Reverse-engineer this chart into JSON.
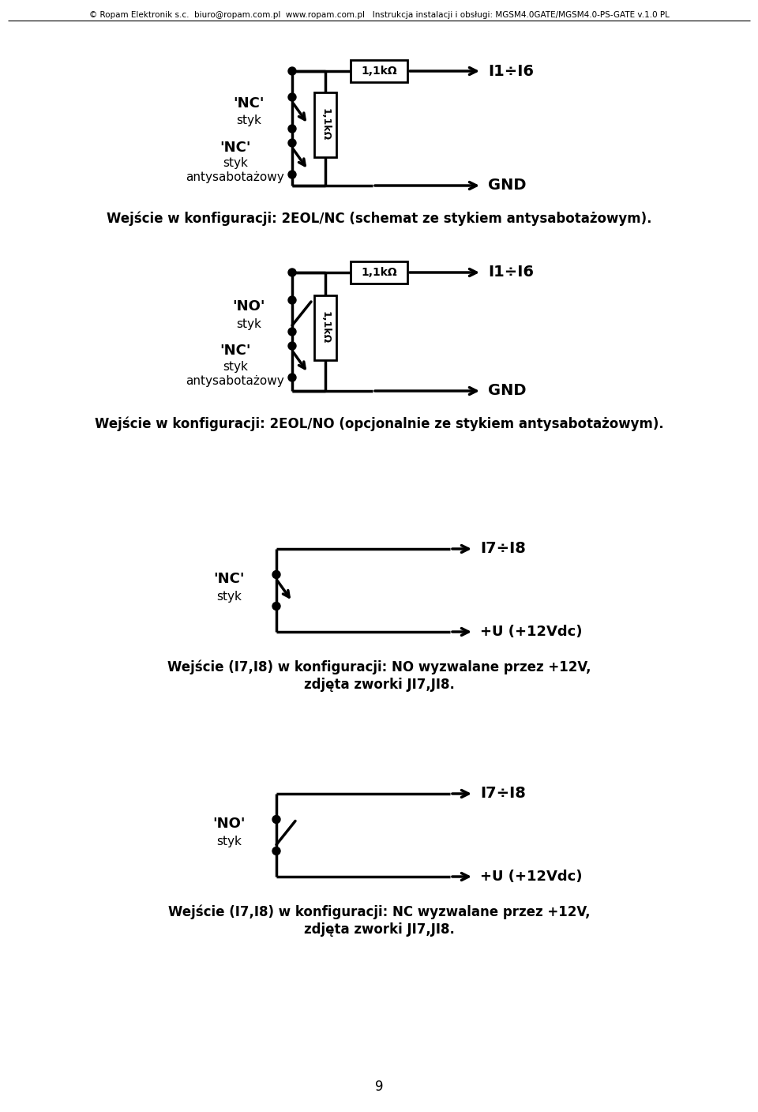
{
  "header_text": "© Ropam Elektronik s.c.  biuro@ropam.com.pl  www.ropam.com.pl   Instrukcja instalacji i obsługi: MGSM4.0GATE/MGSM4.0-PS-GATE v.1.0 PL",
  "page_number": "9",
  "bg_color": "#ffffff",
  "text_color": "#000000",
  "diagram1": {
    "caption": "Wejście w konfiguracji: 2EOL/NC (schemat ze stykiem antysabotażowym).",
    "nc_label": "'NC'",
    "nc_sub": "styk",
    "nc2_label": "'NC'",
    "nc2_sub": "styk",
    "nc2_sub2": "antysabotażowy",
    "res_top": "1,1kΩ",
    "res_side": "1,1kΩ",
    "out_label": "I1÷I6",
    "gnd_label": "GND"
  },
  "diagram2": {
    "caption": "Wejście w konfiguracji: 2EOL/NO (opcjonalnie ze stykiem antysabotażowym).",
    "no_label": "'NO'",
    "no_sub": "styk",
    "nc_label": "'NC'",
    "nc_sub": "styk",
    "nc_sub2": "antysabotażowy",
    "res_top": "1,1kΩ",
    "res_side": "1,1kΩ",
    "out_label": "I1÷I6",
    "gnd_label": "GND"
  },
  "diagram3": {
    "caption_line1": "Wejście (I7,I8) w konfiguracji: NO wyzwalane przez +12V,",
    "caption_line2": "zdjęta zworki JI7,JI8.",
    "nc_label": "'NC'",
    "nc_sub": "styk",
    "out_label": "I7÷I8",
    "plus_label": "+U (+12Vdc)"
  },
  "diagram4": {
    "caption_line1": "Wejście (I7,I8) w konfiguracji: NC wyzwalane przez +12V,",
    "caption_line2": "zdjęta zworki JI7,JI8.",
    "no_label": "'NO'",
    "no_sub": "styk",
    "out_label": "I7÷I8",
    "plus_label": "+U (+12Vdc)"
  }
}
